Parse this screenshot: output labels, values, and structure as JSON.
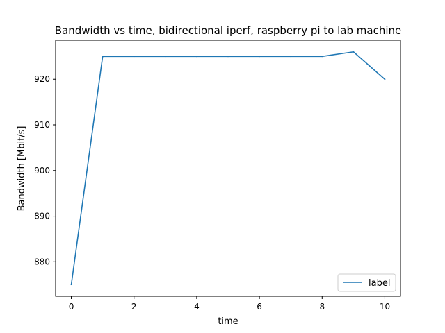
{
  "chart_data": {
    "type": "line",
    "title": "Bandwidth vs time, bidirectional iperf, raspberry pi to lab machine",
    "xlabel": "time",
    "ylabel": "Bandwidth [Mbit/s]",
    "xlim": [
      -0.5,
      10.5
    ],
    "ylim": [
      872.45,
      928.55
    ],
    "xticks": [
      0,
      2,
      4,
      6,
      8,
      10
    ],
    "yticks": [
      880,
      890,
      900,
      910,
      920
    ],
    "grid": false,
    "legend_location": "lower-right",
    "series": [
      {
        "name": "label",
        "color": "#1f77b4",
        "x": [
          0,
          1,
          2,
          3,
          4,
          5,
          6,
          7,
          8,
          9,
          10
        ],
        "values": [
          875,
          925,
          925,
          925,
          925,
          925,
          925,
          925,
          925,
          926,
          920
        ]
      }
    ]
  }
}
